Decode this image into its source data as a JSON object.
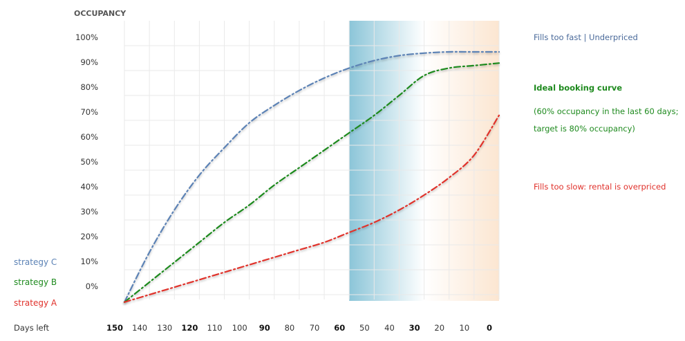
{
  "chart_data": {
    "type": "line",
    "ylabel": "OCCUPANCY",
    "xlabel": "Days left",
    "x_ticks": [
      150,
      140,
      130,
      120,
      110,
      100,
      90,
      80,
      70,
      60,
      50,
      40,
      30,
      20,
      10,
      0
    ],
    "x_ticks_bold": [
      150,
      120,
      90,
      60,
      30,
      0
    ],
    "xlim": [
      150,
      0
    ],
    "y_ticks": [
      "100%",
      "90%",
      "80%",
      "70%",
      "60%",
      "50%",
      "40%",
      "30%",
      "20%",
      "10%",
      "0%"
    ],
    "ylim": [
      0,
      100
    ],
    "highlight_bands": [
      {
        "from": 60,
        "to": 30,
        "color": "#7fbfd4"
      },
      {
        "from": 30,
        "to": 0,
        "color": "#fbe3cc"
      }
    ],
    "series": [
      {
        "name": "strategy C",
        "color": "#5b82b5",
        "x": [
          150,
          140,
          130,
          120,
          110,
          100,
          90,
          80,
          70,
          60,
          50,
          40,
          30,
          20,
          10,
          0
        ],
        "y": [
          -3,
          17,
          34,
          48,
          59,
          69,
          76,
          82,
          87,
          91,
          94,
          96,
          97,
          97.5,
          97.5,
          97.5
        ]
      },
      {
        "name": "strategy B",
        "color": "#1e8a1e",
        "x": [
          150,
          140,
          130,
          120,
          110,
          100,
          90,
          80,
          70,
          60,
          50,
          40,
          30,
          20,
          10,
          0
        ],
        "y": [
          -3,
          5,
          13,
          21,
          29,
          36,
          44,
          51,
          58,
          65,
          72,
          80,
          88,
          91,
          92,
          93
        ]
      },
      {
        "name": "strategy A",
        "color": "#e0302a",
        "x": [
          150,
          140,
          130,
          120,
          110,
          100,
          90,
          80,
          70,
          60,
          50,
          40,
          30,
          20,
          10,
          0
        ],
        "y": [
          -3,
          0,
          3,
          6,
          9,
          12,
          15,
          18,
          21,
          25,
          29,
          34,
          40,
          47,
          56,
          72
        ]
      }
    ],
    "annotations": [
      {
        "text": "Fills too fast | Underpriced",
        "color": "#4a6a9a",
        "bold": false
      },
      {
        "text": "Ideal booking curve",
        "color": "#1e8a1e",
        "bold": true
      },
      {
        "text": "(60% occupancy in the last 60 days;",
        "color": "#1e8a1e",
        "bold": false
      },
      {
        "text": "target is 80% occupancy)",
        "color": "#1e8a1e",
        "bold": false
      },
      {
        "text": "Fills too slow: rental is overpriced",
        "color": "#e0302a",
        "bold": false
      }
    ],
    "legend": [
      {
        "label": "strategy C",
        "color": "#5b82b5"
      },
      {
        "label": "strategy B",
        "color": "#1e8a1e"
      },
      {
        "label": "strategy A",
        "color": "#e0302a"
      }
    ],
    "grid": true,
    "legend_position": "bottom-left"
  }
}
